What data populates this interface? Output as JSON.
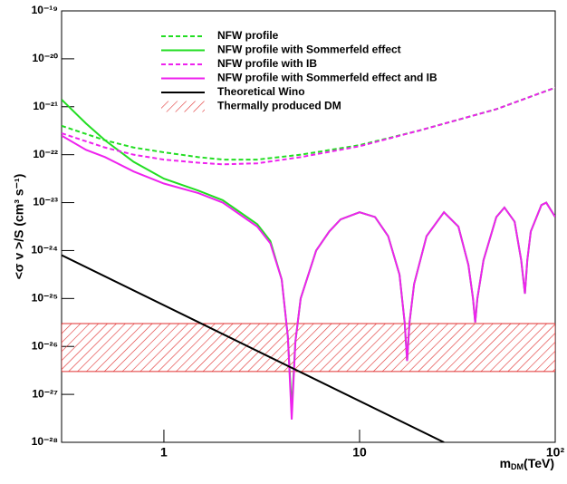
{
  "chart_data": {
    "type": "line",
    "x_label": {
      "main": "m",
      "sub": "DM",
      "rest": "(TeV)"
    },
    "y_label": "<σ v >/S (cm³ s⁻¹)",
    "xscale": "log",
    "yscale": "log",
    "xlim": [
      0.3,
      100
    ],
    "ylim": [
      1e-28,
      1e-19
    ],
    "xticks": [
      1,
      10,
      {
        "value": 100,
        "label": "10²"
      }
    ],
    "yticks": [
      {
        "value": 1e-28,
        "label": "10⁻²⁸"
      },
      {
        "value": 1e-27,
        "label": "10⁻²⁷"
      },
      {
        "value": 1e-26,
        "label": "10⁻²⁶"
      },
      {
        "value": 1e-25,
        "label": "10⁻²⁵"
      },
      {
        "value": 1e-24,
        "label": "10⁻²⁴"
      },
      {
        "value": 1e-23,
        "label": "10⁻²³"
      },
      {
        "value": 1e-22,
        "label": "10⁻²²"
      },
      {
        "value": 1e-21,
        "label": "10⁻²¹"
      },
      {
        "value": 1e-20,
        "label": "10⁻²⁰"
      },
      {
        "value": 1e-19,
        "label": "10⁻¹⁹"
      }
    ],
    "series": [
      {
        "name": "NFW profile",
        "color": "#22dd22",
        "style": "dashed",
        "x": [
          0.3,
          0.5,
          0.7,
          1,
          1.5,
          2,
          3,
          5,
          10,
          20,
          50,
          100
        ],
        "values": [
          4e-22,
          2e-22,
          1.41e-22,
          1.12e-22,
          8.9e-23,
          7.9e-23,
          7.9e-23,
          1e-22,
          1.58e-22,
          3.16e-22,
          8.9e-22,
          2.5e-21
        ]
      },
      {
        "name": "NFW profile with Sommerfeld effect",
        "color": "#22dd22",
        "style": "solid",
        "x": [
          0.3,
          0.4,
          0.5,
          0.7,
          1,
          1.5,
          2,
          3,
          3.5,
          4,
          4.3,
          4.5,
          4.7,
          5,
          6,
          7,
          8,
          10,
          12,
          14,
          16,
          17,
          17.5,
          18,
          19,
          22,
          27,
          32,
          36,
          38,
          39,
          40,
          43,
          50,
          55,
          62,
          67,
          70,
          72,
          75,
          85,
          90,
          100
        ],
        "values": [
          1.41e-21,
          4.47e-22,
          2e-22,
          7.1e-23,
          3.16e-23,
          1.78e-23,
          1.12e-23,
          3.55e-24,
          1.58e-24,
          2.5e-25,
          1.6e-26,
          5e-28,
          1.26e-26,
          1e-25,
          1e-24,
          2.5e-24,
          4.47e-24,
          6.3e-24,
          5e-24,
          2e-24,
          3.16e-25,
          3.16e-26,
          5e-27,
          3.16e-26,
          2e-25,
          2e-24,
          6.3e-24,
          3.16e-24,
          5e-25,
          1e-25,
          3.16e-26,
          1e-25,
          6.3e-25,
          5e-24,
          7.9e-24,
          4e-24,
          6.3e-25,
          1.26e-25,
          6.3e-25,
          2.5e-24,
          8.9e-24,
          1e-23,
          5e-24
        ]
      },
      {
        "name": "NFW profile with IB",
        "color": "#ee22ee",
        "style": "dashed",
        "x": [
          0.3,
          0.5,
          0.7,
          1,
          1.5,
          2,
          3,
          5,
          10,
          20,
          50,
          100
        ],
        "values": [
          2.8e-22,
          1.41e-22,
          1e-22,
          7.9e-23,
          6.8e-23,
          6.3e-23,
          6.6e-23,
          8.9e-23,
          1.5e-22,
          3.16e-22,
          8.9e-22,
          2.5e-21
        ]
      },
      {
        "name": "NFW profile with Sommerfeld effect and IB",
        "color": "#ee22ee",
        "style": "solid",
        "x": [
          0.3,
          0.4,
          0.5,
          0.7,
          1,
          1.5,
          2,
          3,
          3.5,
          4,
          4.3,
          4.5,
          4.7,
          5,
          6,
          7,
          8,
          10,
          12,
          14,
          16,
          17,
          17.5,
          18,
          19,
          22,
          27,
          32,
          36,
          38,
          39,
          40,
          43,
          50,
          55,
          62,
          67,
          70,
          72,
          75,
          85,
          90,
          100
        ],
        "values": [
          2.5e-22,
          1.26e-22,
          8.9e-23,
          4.47e-23,
          2.5e-23,
          1.58e-23,
          1e-23,
          3.16e-24,
          1.41e-24,
          2.5e-25,
          1.6e-26,
          3e-28,
          1.26e-26,
          1e-25,
          1e-24,
          2.5e-24,
          4.47e-24,
          6.3e-24,
          5e-24,
          2e-24,
          3.16e-25,
          3.16e-26,
          5e-27,
          3.16e-26,
          2e-25,
          2e-24,
          6.3e-24,
          3.16e-24,
          5e-25,
          1e-25,
          3.16e-26,
          1e-25,
          6.3e-25,
          5e-24,
          7.9e-24,
          4e-24,
          6.3e-25,
          1.26e-25,
          6.3e-25,
          2.5e-24,
          8.9e-24,
          1e-23,
          5e-24
        ]
      },
      {
        "name": "Theoretical Wino",
        "color": "#000000",
        "style": "solid",
        "x": [
          0.3,
          27
        ],
        "values": [
          8e-25,
          1e-28
        ]
      }
    ],
    "band": {
      "name": "Thermally produced DM",
      "color": "#e03030",
      "low": 3e-27,
      "high": 3e-26
    }
  }
}
